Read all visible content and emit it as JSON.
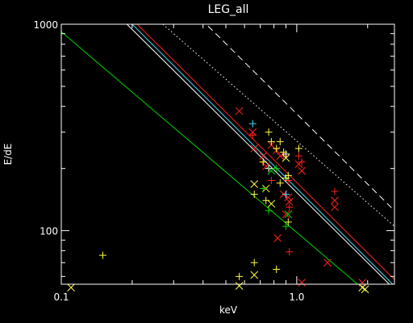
{
  "chart_data": {
    "type": "scatter",
    "title": "LEG_all",
    "xlabel": "keV",
    "ylabel": "E/dE",
    "xscale": "log",
    "yscale": "log",
    "xlim": [
      0.1,
      2.6
    ],
    "ylim": [
      55,
      1000
    ],
    "x_ticks": [
      {
        "value": 0.1,
        "label": "0.1"
      },
      {
        "value": 1.0,
        "label": "1.0"
      }
    ],
    "y_ticks": [
      {
        "value": 100,
        "label": "100"
      },
      {
        "value": 1000,
        "label": "1000"
      }
    ],
    "colors": {
      "background": "#000000",
      "axes": "#ffffff",
      "red": "#ff2020",
      "cyan": "#40e0ff",
      "white": "#ffffff",
      "green": "#00d000",
      "yellow": "#ffff40"
    },
    "lines": [
      {
        "color": "red",
        "style": "solid",
        "points": [
          [
            0.21,
            1000
          ],
          [
            2.6,
            58
          ]
        ]
      },
      {
        "color": "cyan",
        "style": "solid",
        "points": [
          [
            0.2,
            1000
          ],
          [
            2.6,
            54
          ]
        ]
      },
      {
        "color": "white",
        "style": "solid",
        "points": [
          [
            0.19,
            1000
          ],
          [
            2.6,
            52
          ]
        ]
      },
      {
        "color": "green",
        "style": "solid",
        "points": [
          [
            0.1,
            920
          ],
          [
            2.0,
            50
          ]
        ]
      },
      {
        "color": "white",
        "style": "dotted",
        "points": [
          [
            0.27,
            1000
          ],
          [
            2.6,
            105
          ]
        ]
      },
      {
        "color": "white",
        "style": "dashed",
        "points": [
          [
            0.42,
            980
          ],
          [
            2.6,
            125
          ]
        ]
      }
    ],
    "series": [
      {
        "marker": "x",
        "color": "red",
        "points": [
          [
            0.57,
            380
          ],
          [
            0.65,
            300
          ],
          [
            0.66,
            250
          ],
          [
            0.72,
            230
          ],
          [
            0.74,
            205
          ],
          [
            0.78,
            260
          ],
          [
            0.82,
            245
          ],
          [
            0.83,
            92
          ],
          [
            0.85,
            230
          ],
          [
            0.88,
            150
          ],
          [
            0.9,
            120
          ],
          [
            0.92,
            145
          ],
          [
            0.93,
            138
          ],
          [
            1.02,
            210
          ],
          [
            1.05,
            195
          ],
          [
            1.05,
            56
          ],
          [
            1.45,
            140
          ],
          [
            1.45,
            130
          ],
          [
            1.35,
            70
          ],
          [
            1.9,
            56
          ]
        ]
      },
      {
        "marker": "+",
        "color": "red",
        "points": [
          [
            0.65,
            290
          ],
          [
            0.72,
            215
          ],
          [
            0.78,
            175
          ],
          [
            0.88,
            230
          ],
          [
            0.92,
            175
          ],
          [
            0.93,
            130
          ],
          [
            0.93,
            79
          ],
          [
            1.02,
            230
          ],
          [
            1.05,
            215
          ],
          [
            1.45,
            155
          ]
        ]
      },
      {
        "marker": "+",
        "color": "cyan",
        "points": [
          [
            0.65,
            330
          ],
          [
            0.9,
            150
          ]
        ]
      },
      {
        "marker": "+",
        "color": "white",
        "points": [
          [
            0.76,
            200
          ],
          [
            0.9,
            235
          ]
        ]
      },
      {
        "marker": "+",
        "color": "yellow",
        "points": [
          [
            0.15,
            76
          ],
          [
            0.57,
            60
          ],
          [
            0.66,
            70
          ],
          [
            0.66,
            150
          ],
          [
            0.72,
            215
          ],
          [
            0.74,
            140
          ],
          [
            0.76,
            300
          ],
          [
            0.78,
            270
          ],
          [
            0.82,
            65
          ],
          [
            0.82,
            250
          ],
          [
            0.85,
            270
          ],
          [
            0.85,
            170
          ],
          [
            0.88,
            240
          ],
          [
            0.9,
            180
          ],
          [
            0.92,
            185
          ],
          [
            0.92,
            110
          ],
          [
            1.02,
            250
          ]
        ]
      },
      {
        "marker": "x",
        "color": "yellow",
        "points": [
          [
            0.11,
            53
          ],
          [
            0.57,
            54
          ],
          [
            0.66,
            168
          ],
          [
            0.66,
            61
          ],
          [
            0.74,
            160
          ],
          [
            0.78,
            135
          ],
          [
            0.9,
            225
          ],
          [
            1.9,
            53
          ],
          [
            1.95,
            52
          ]
        ]
      },
      {
        "marker": "+",
        "color": "green",
        "points": [
          [
            0.72,
            160
          ],
          [
            0.76,
            125
          ],
          [
            0.82,
            200
          ],
          [
            0.9,
            105
          ]
        ]
      },
      {
        "marker": "x",
        "color": "green",
        "points": [
          [
            0.78,
            195
          ],
          [
            0.92,
            120
          ]
        ]
      }
    ]
  }
}
